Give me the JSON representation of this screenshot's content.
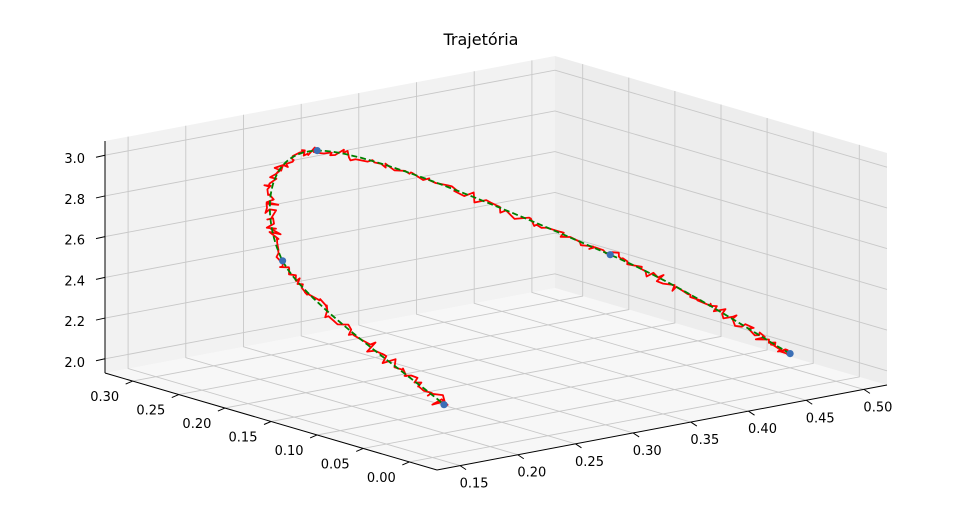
{
  "chart_data": {
    "type": "line3d",
    "title": "Trajetória",
    "xlabel": "",
    "ylabel": "",
    "zlabel": "",
    "xlim": [
      0.13,
      0.52
    ],
    "ylim": [
      -0.03,
      0.33
    ],
    "zlim": [
      1.93,
      3.07
    ],
    "x_ticks": [
      "0.15",
      "0.20",
      "0.25",
      "0.30",
      "0.35",
      "0.40",
      "0.45",
      "0.50"
    ],
    "y_ticks": [
      "0.00",
      "0.05",
      "0.10",
      "0.15",
      "0.20",
      "0.25",
      "0.30"
    ],
    "z_ticks": [
      "2.0",
      "2.2",
      "2.4",
      "2.6",
      "2.8",
      "3.0"
    ],
    "grid": true,
    "waypoints": [
      {
        "x": 0.5,
        "y": 0.05,
        "z": 2.0
      },
      {
        "x": 0.4,
        "y": 0.12,
        "z": 2.5
      },
      {
        "x": 0.25,
        "y": 0.25,
        "z": 3.0
      },
      {
        "x": 0.18,
        "y": 0.2,
        "z": 2.6
      },
      {
        "x": 0.2,
        "y": 0.05,
        "z": 2.07
      }
    ],
    "series": [
      {
        "style": "dashed",
        "color": "#008000"
      },
      {
        "style": "solid",
        "color": "#ff0000"
      }
    ],
    "colors": {
      "waypoint": "#3b6fb6",
      "pane": "#f2f2f2",
      "grid": "#c8c8c8"
    }
  }
}
